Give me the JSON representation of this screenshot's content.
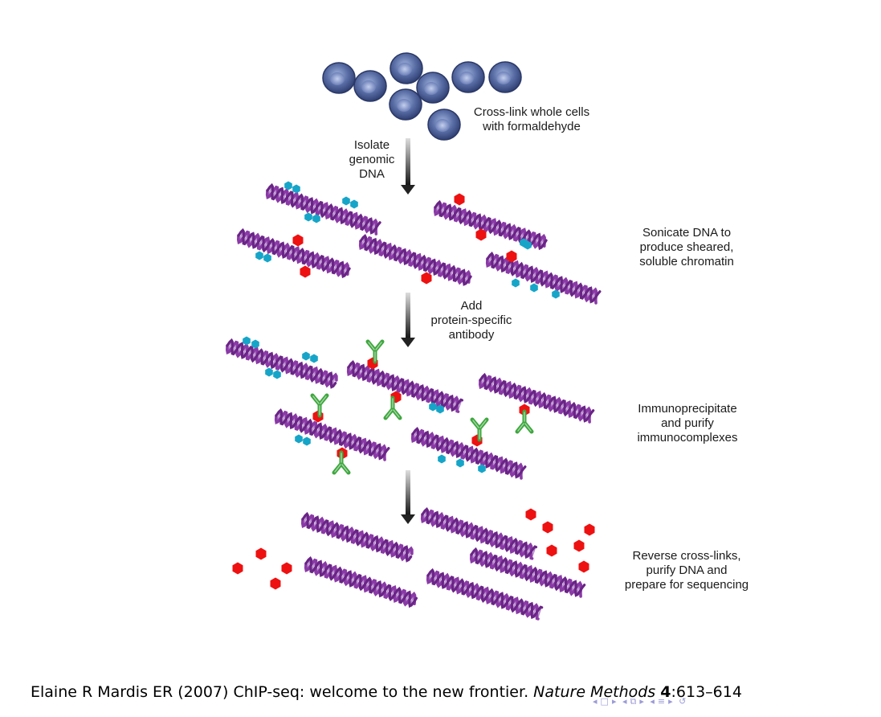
{
  "labels": {
    "crosslink": [
      "Cross-link whole cells",
      "with formaldehyde"
    ],
    "isolate": [
      "Isolate",
      "genomic",
      "DNA"
    ],
    "sonicate": [
      "Sonicate DNA to",
      "produce sheared,",
      "soluble chromatin"
    ],
    "antibody": [
      "Add",
      "protein-specific",
      "antibody"
    ],
    "immuno": [
      "Immunoprecipitate",
      "and purify",
      "immunocomplexes"
    ],
    "reverse": [
      "Reverse cross-links,",
      "purify DNA and",
      "prepare for sequencing"
    ]
  },
  "citation": {
    "authors": "Elaine R Mardis ER (2007) ChIP-seq: welcome to the new frontier. ",
    "journal": "Nature Methods",
    "volume": "4",
    "pages": ":613–614"
  },
  "colors": {
    "cell": "#4a5f96",
    "dna": "#8a3aa6",
    "protein_target": "#ee1111",
    "protein_other": "#16a5c8",
    "antibody": "#3fa63f",
    "arrow": "#222222"
  }
}
